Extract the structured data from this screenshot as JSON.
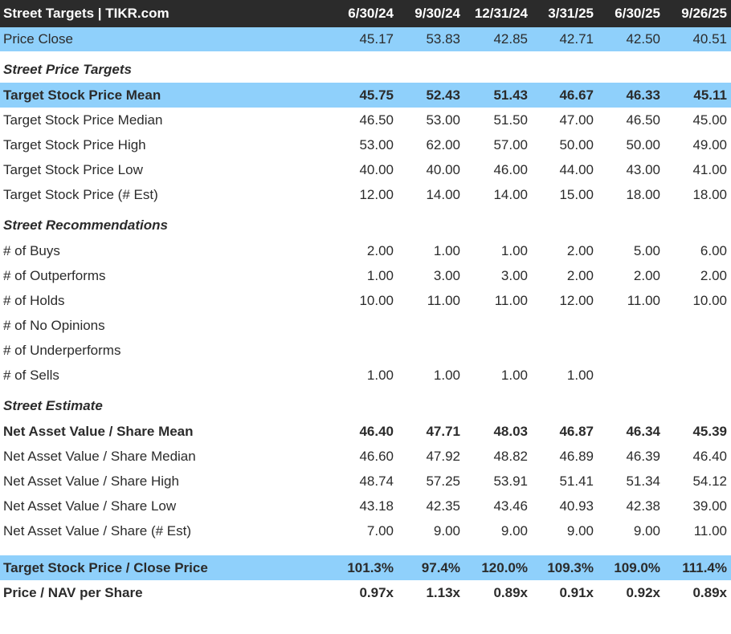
{
  "header": {
    "title": "Street Targets | TIKR.com",
    "periods": [
      "6/30/24",
      "9/30/24",
      "12/31/24",
      "3/31/25",
      "6/30/25",
      "9/26/25"
    ]
  },
  "price_close": {
    "label": "Price Close",
    "values": [
      "45.17",
      "53.83",
      "42.85",
      "42.71",
      "42.50",
      "40.51"
    ]
  },
  "sections": [
    {
      "title": "Street Price Targets",
      "rows": [
        {
          "label": "Target Stock Price Mean",
          "bold": true,
          "blue": true,
          "values": [
            "45.75",
            "52.43",
            "51.43",
            "46.67",
            "46.33",
            "45.11"
          ]
        },
        {
          "label": "Target Stock Price Median",
          "values": [
            "46.50",
            "53.00",
            "51.50",
            "47.00",
            "46.50",
            "45.00"
          ]
        },
        {
          "label": "Target Stock Price High",
          "values": [
            "53.00",
            "62.00",
            "57.00",
            "50.00",
            "50.00",
            "49.00"
          ]
        },
        {
          "label": "Target Stock Price Low",
          "values": [
            "40.00",
            "40.00",
            "46.00",
            "44.00",
            "43.00",
            "41.00"
          ]
        },
        {
          "label": "Target Stock Price (# Est)",
          "values": [
            "12.00",
            "14.00",
            "14.00",
            "15.00",
            "18.00",
            "18.00"
          ]
        }
      ]
    },
    {
      "title": "Street Recommendations",
      "rows": [
        {
          "label": "# of Buys",
          "values": [
            "2.00",
            "1.00",
            "1.00",
            "2.00",
            "5.00",
            "6.00"
          ]
        },
        {
          "label": "# of Outperforms",
          "values": [
            "1.00",
            "3.00",
            "3.00",
            "2.00",
            "2.00",
            "2.00"
          ]
        },
        {
          "label": "# of Holds",
          "values": [
            "10.00",
            "11.00",
            "11.00",
            "12.00",
            "11.00",
            "10.00"
          ]
        },
        {
          "label": "# of No Opinions",
          "values": [
            "",
            "",
            "",
            "",
            "",
            ""
          ]
        },
        {
          "label": "# of Underperforms",
          "values": [
            "",
            "",
            "",
            "",
            "",
            ""
          ]
        },
        {
          "label": "# of Sells",
          "values": [
            "1.00",
            "1.00",
            "1.00",
            "1.00",
            "",
            ""
          ]
        }
      ]
    },
    {
      "title": "Street Estimate",
      "rows": [
        {
          "label": "Net Asset Value / Share Mean",
          "bold": true,
          "values": [
            "46.40",
            "47.71",
            "48.03",
            "46.87",
            "46.34",
            "45.39"
          ]
        },
        {
          "label": "Net Asset Value / Share Median",
          "values": [
            "46.60",
            "47.92",
            "48.82",
            "46.89",
            "46.39",
            "46.40"
          ]
        },
        {
          "label": "Net Asset Value / Share High",
          "values": [
            "48.74",
            "57.25",
            "53.91",
            "51.41",
            "51.34",
            "54.12"
          ]
        },
        {
          "label": "Net Asset Value / Share Low",
          "values": [
            "43.18",
            "42.35",
            "43.46",
            "40.93",
            "42.38",
            "39.00"
          ]
        },
        {
          "label": "Net Asset Value / Share (# Est)",
          "values": [
            "7.00",
            "9.00",
            "9.00",
            "9.00",
            "9.00",
            "11.00"
          ]
        }
      ]
    }
  ],
  "summary": [
    {
      "label": "Target Stock Price / Close Price",
      "bold": true,
      "blue": true,
      "values": [
        "101.3%",
        "97.4%",
        "120.0%",
        "109.3%",
        "109.0%",
        "111.4%"
      ]
    },
    {
      "label": "Price / NAV per Share",
      "bold": true,
      "values": [
        "0.97x",
        "1.13x",
        "0.89x",
        "0.91x",
        "0.92x",
        "0.89x"
      ]
    }
  ],
  "colors": {
    "header_bg": "#2b2b2b",
    "highlight_bg": "#8fd0fb"
  }
}
